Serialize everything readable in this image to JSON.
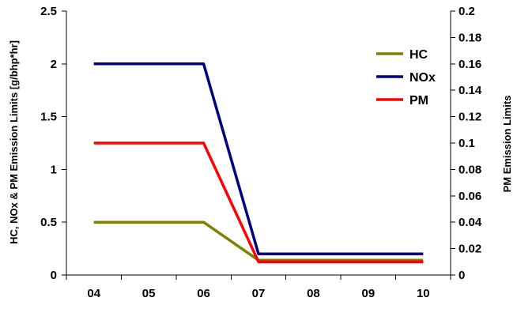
{
  "chart_data": {
    "type": "line",
    "categories": [
      "04",
      "05",
      "06",
      "07",
      "08",
      "09",
      "10"
    ],
    "series": [
      {
        "name": "HC",
        "axis": "left",
        "color": "#808000",
        "values": [
          0.5,
          0.5,
          0.5,
          0.14,
          0.14,
          0.14,
          0.14
        ]
      },
      {
        "name": "NOx",
        "axis": "left",
        "color": "#000080",
        "values": [
          2.0,
          2.0,
          2.0,
          0.2,
          0.2,
          0.2,
          0.2
        ]
      },
      {
        "name": "PM",
        "axis": "right",
        "color": "#ff0000",
        "values": [
          0.1,
          0.1,
          0.1,
          0.01,
          0.01,
          0.01,
          0.01
        ]
      }
    ],
    "ylabel": "HC, NOx & PM Emission Limits [g/bhp*hr]",
    "y2label": "PM Emission Limits",
    "ylim": [
      0,
      2.5
    ],
    "y2lim": [
      0,
      0.2
    ],
    "yticks": [
      "0",
      "0.5",
      "1",
      "1.5",
      "2",
      "2.5"
    ],
    "y2ticks": [
      "0",
      "0.02",
      "0.04",
      "0.06",
      "0.08",
      "0.1",
      "0.12",
      "0.14",
      "0.16",
      "0.18",
      "0.2"
    ],
    "legend_position": "top-right",
    "grid": false
  }
}
